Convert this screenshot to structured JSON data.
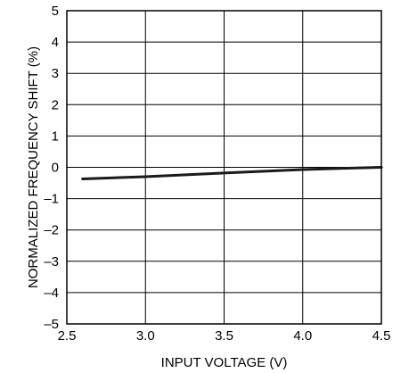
{
  "chart_data": {
    "type": "line",
    "title": "",
    "xlabel": "INPUT VOLTAGE (V)",
    "ylabel": "NORMALIZED FREQUENCY SHIFT (%)",
    "xlim": [
      2.5,
      4.5
    ],
    "ylim": [
      -5,
      5
    ],
    "x_ticks": [
      2.5,
      3.0,
      3.5,
      4.0,
      4.5
    ],
    "x_tick_labels": [
      "2.5",
      "3.0",
      "3.5",
      "4.0",
      "4.5"
    ],
    "y_ticks": [
      5,
      4,
      3,
      2,
      1,
      0,
      -1,
      -2,
      -3,
      -4,
      -5
    ],
    "y_tick_labels": [
      "5",
      "4",
      "3",
      "2",
      "1",
      "0",
      "–1",
      "–2",
      "–3",
      "–4",
      "–5"
    ],
    "grid": true,
    "series": [
      {
        "x": [
          2.6,
          3.0,
          3.5,
          4.0,
          4.5
        ],
        "y": [
          -0.37,
          -0.3,
          -0.18,
          -0.07,
          0.0
        ],
        "color": "#1a1a1a"
      }
    ]
  }
}
